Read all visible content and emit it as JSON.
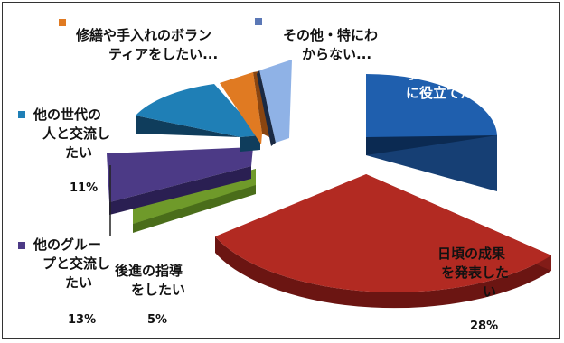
{
  "chart_data": {
    "type": "pie",
    "style": "3d-exploded",
    "slices": [
      {
        "key": "local",
        "label_lines": [
          "学んだ事を地域",
          "に役立てたい..."
        ],
        "pct_label": "",
        "value": 32,
        "color": "#1f5fae"
      },
      {
        "key": "present",
        "label_lines": [
          "日頃の成果",
          "を発表した",
          "い"
        ],
        "pct_label": "28%",
        "value": 28,
        "color": "#b22a22"
      },
      {
        "key": "guide",
        "label_lines": [
          "後進の指導",
          "をしたい"
        ],
        "pct_label": "5%",
        "value": 5,
        "color": "#6f9a2a"
      },
      {
        "key": "group",
        "label_lines": [
          "他のグルー",
          "プと交流し",
          "たい"
        ],
        "pct_label": "13%",
        "value": 13,
        "color": "#4c3a86"
      },
      {
        "key": "generation",
        "label_lines": [
          "他の世代の",
          "人と交流し",
          "たい"
        ],
        "pct_label": "11%",
        "value": 11,
        "color": "#1f7fb6"
      },
      {
        "key": "volunteer",
        "label_lines": [
          "修繕や手入れのボラン",
          "ティアをしたい..."
        ],
        "pct_label": "",
        "value": 4,
        "color": "#e07a22"
      },
      {
        "key": "other",
        "label_lines": [
          "その他・特にわ",
          "からない..."
        ],
        "pct_label": "",
        "value": 4,
        "color": "#8fb2e6"
      }
    ]
  }
}
